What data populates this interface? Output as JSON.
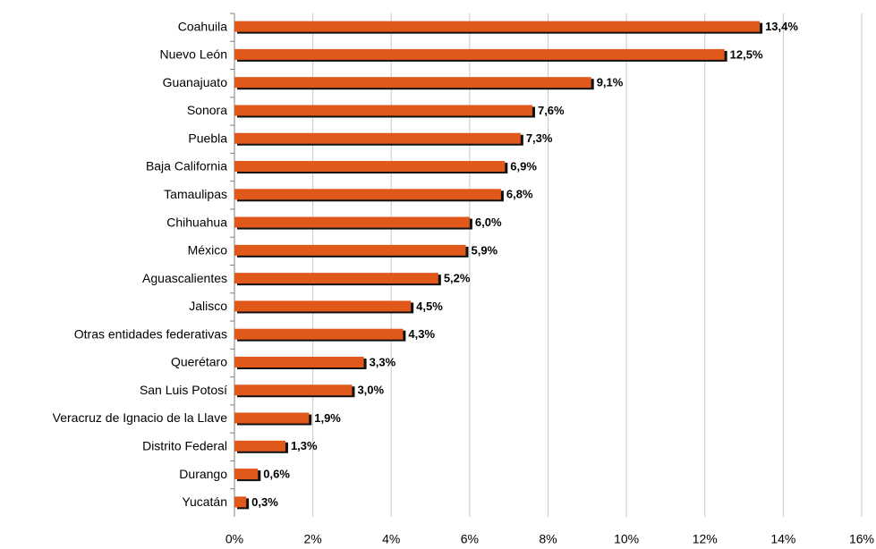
{
  "chart_data": {
    "type": "hbar",
    "categories": [
      "Coahuila",
      "Nuevo León",
      "Guanajuato",
      "Sonora",
      "Puebla",
      "Baja California",
      "Tamaulipas",
      "Chihuahua",
      "México",
      "Aguascalientes",
      "Jalisco",
      "Otras entidades federativas",
      "Querétaro",
      "San Luis Potosí",
      "Veracruz de Ignacio de la Llave",
      "Distrito Federal",
      "Durango",
      "Yucatán"
    ],
    "values": [
      13.4,
      12.5,
      9.1,
      7.6,
      7.3,
      6.9,
      6.8,
      6.0,
      5.9,
      5.2,
      4.5,
      4.3,
      3.3,
      3.0,
      1.9,
      1.3,
      0.6,
      0.3
    ],
    "value_labels": [
      "13,4%",
      "12,5%",
      "9,1%",
      "7,6%",
      "7,3%",
      "6,9%",
      "6,8%",
      "6,0%",
      "5,9%",
      "5,2%",
      "4,5%",
      "4,3%",
      "3,3%",
      "3,0%",
      "1,9%",
      "1,3%",
      "0,6%",
      "0,3%"
    ],
    "color": "#e0581a",
    "xlim": [
      0,
      16
    ],
    "xticks": [
      {
        "value": 0,
        "label": "0%"
      },
      {
        "value": 2,
        "label": "2%"
      },
      {
        "value": 4,
        "label": "4%"
      },
      {
        "value": 6,
        "label": "6%"
      },
      {
        "value": 8,
        "label": "8%"
      },
      {
        "value": 10,
        "label": "10%"
      },
      {
        "value": 12,
        "label": "12%"
      },
      {
        "value": 14,
        "label": "14%"
      },
      {
        "value": 16,
        "label": "16%"
      }
    ],
    "grid": true
  }
}
